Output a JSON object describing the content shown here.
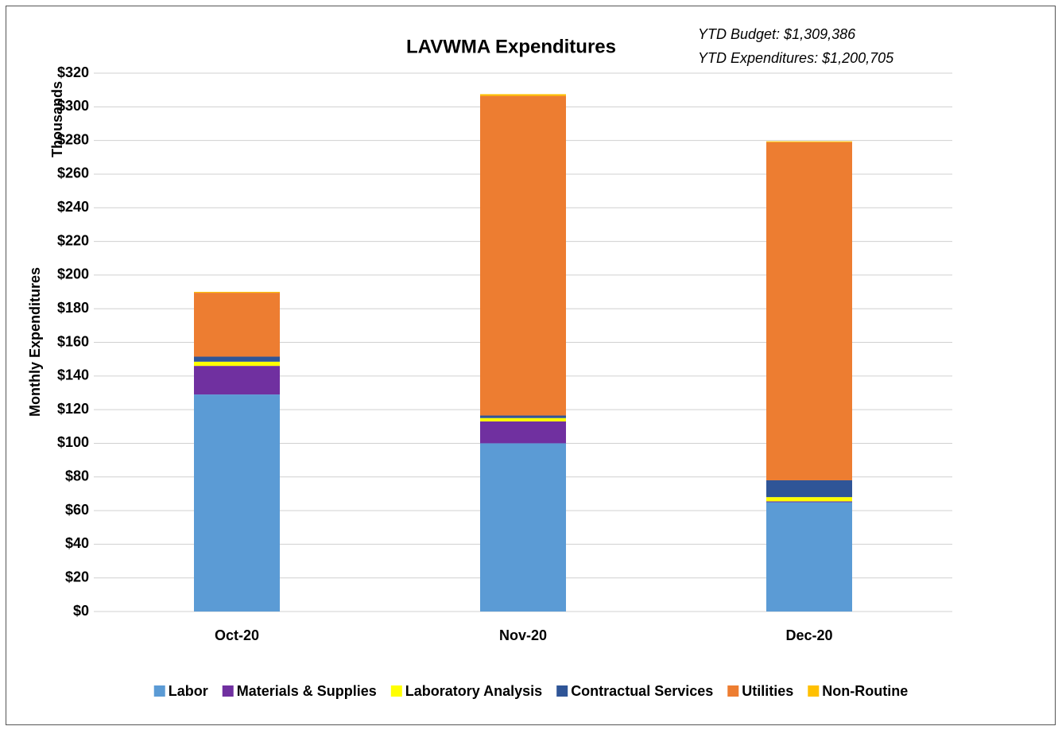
{
  "chart_data": {
    "type": "stacked_bar",
    "title": "LAVWMA Expenditures",
    "annotations": [
      "YTD Budget: $1,309,386",
      "YTD Expenditures: $1,200,705"
    ],
    "y_unit_label": "Thousands",
    "y_label": "Monthly Expenditures",
    "categories": [
      "Oct-20",
      "Nov-20",
      "Dec-20"
    ],
    "series": [
      {
        "name": "Labor",
        "color": "#5b9bd5",
        "values": [
          129,
          100,
          65
        ]
      },
      {
        "name": "Materials & Supplies",
        "color": "#7030a0",
        "values": [
          17,
          13,
          0.5
        ]
      },
      {
        "name": "Laboratory Analysis",
        "color": "#ffff00",
        "values": [
          2.5,
          2,
          2.5
        ]
      },
      {
        "name": "Contractual Services",
        "color": "#2f5597",
        "values": [
          3,
          1.5,
          10
        ]
      },
      {
        "name": "Utilities",
        "color": "#ed7d31",
        "values": [
          38,
          190,
          201
        ]
      },
      {
        "name": "Non-Routine",
        "color": "#ffc000",
        "values": [
          0.5,
          1,
          0.5
        ]
      }
    ],
    "ylim": [
      0,
      320
    ],
    "yticks": [
      {
        "value": 0,
        "label": "$0"
      },
      {
        "value": 20,
        "label": "$20"
      },
      {
        "value": 40,
        "label": "$40"
      },
      {
        "value": 60,
        "label": "$60"
      },
      {
        "value": 80,
        "label": "$80"
      },
      {
        "value": 100,
        "label": "$100"
      },
      {
        "value": 120,
        "label": "$120"
      },
      {
        "value": 140,
        "label": "$140"
      },
      {
        "value": 160,
        "label": "$160"
      },
      {
        "value": 180,
        "label": "$180"
      },
      {
        "value": 200,
        "label": "$200"
      },
      {
        "value": 220,
        "label": "$220"
      },
      {
        "value": 240,
        "label": "$240"
      },
      {
        "value": 260,
        "label": "$260"
      },
      {
        "value": 280,
        "label": "$280"
      },
      {
        "value": 300,
        "label": "$300"
      },
      {
        "value": 320,
        "label": "$320"
      }
    ],
    "grid": true,
    "legend": "bottom"
  }
}
